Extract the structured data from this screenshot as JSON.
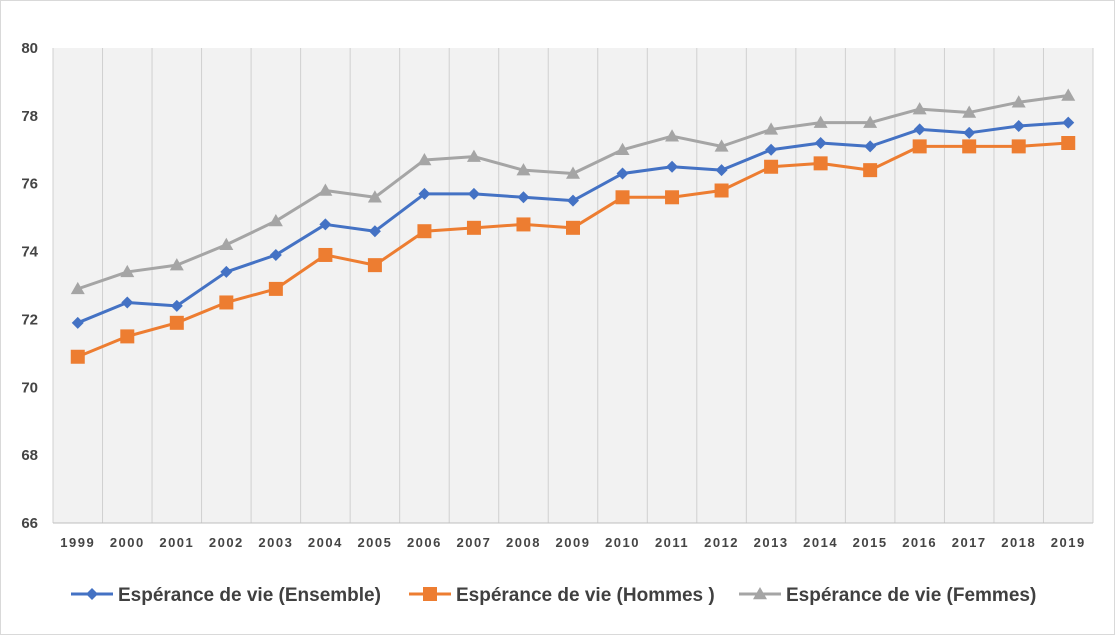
{
  "chart_data": {
    "type": "line",
    "title": "",
    "xlabel": "",
    "ylabel": "",
    "x": [
      "1999",
      "2000",
      "2001",
      "2002",
      "2003",
      "2004",
      "2005",
      "2006",
      "2007",
      "2008",
      "2009",
      "2010",
      "2011",
      "2012",
      "2013",
      "2014",
      "2015",
      "2016",
      "2017",
      "2018",
      "2019"
    ],
    "ylim": [
      66,
      80
    ],
    "yticks": [
      66,
      68,
      70,
      72,
      74,
      76,
      78,
      80
    ],
    "grid": "vertical",
    "legend_position": "bottom",
    "plot_background": "#f2f2f2",
    "series": [
      {
        "name": "Espérance de vie (Ensemble)",
        "color": "#4472c4",
        "marker": "diamond",
        "values": [
          71.9,
          72.5,
          72.4,
          73.4,
          73.9,
          74.8,
          74.6,
          75.7,
          75.7,
          75.6,
          75.5,
          76.3,
          76.5,
          76.4,
          77.0,
          77.2,
          77.1,
          77.6,
          77.5,
          77.7,
          77.8
        ]
      },
      {
        "name": "Espérance de vie (Hommes )",
        "color": "#ed7d31",
        "marker": "square",
        "values": [
          70.9,
          71.5,
          71.9,
          72.5,
          72.9,
          73.9,
          73.6,
          74.6,
          74.7,
          74.8,
          74.7,
          75.6,
          75.6,
          75.8,
          76.5,
          76.6,
          76.4,
          77.1,
          77.1,
          77.1,
          77.2
        ]
      },
      {
        "name": "Espérance de vie (Femmes)",
        "color": "#a5a5a5",
        "marker": "triangle",
        "values": [
          72.9,
          73.4,
          73.6,
          74.2,
          74.9,
          75.8,
          75.6,
          76.7,
          76.8,
          76.4,
          76.3,
          77.0,
          77.4,
          77.1,
          77.6,
          77.8,
          77.8,
          78.2,
          78.1,
          78.4,
          78.6
        ]
      }
    ]
  }
}
